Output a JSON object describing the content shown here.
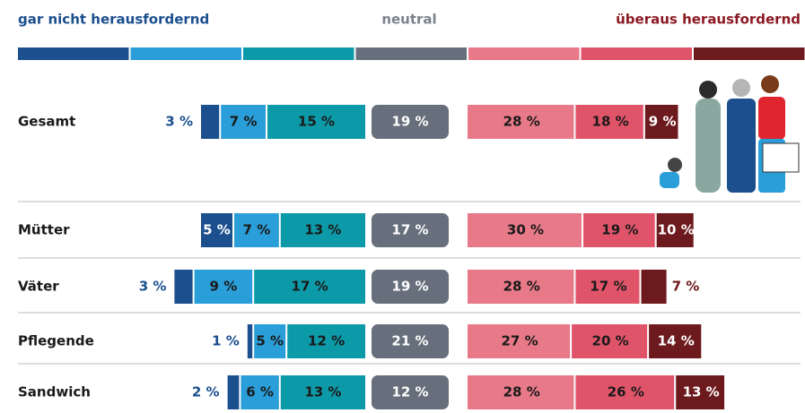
{
  "chart_data": {
    "type": "diverging_bar",
    "scale_labels": [
      "gar nicht herausfordernd",
      "neutral",
      "überaus herausfordernd"
    ],
    "categories": [
      "Gesamt",
      "Mütter",
      "Väter",
      "Pflegende",
      "Sandwich"
    ],
    "series": [
      {
        "color": "#1b4f8e",
        "values": [
          3,
          5,
          3,
          1,
          2
        ],
        "value_labels": [
          "3 %",
          "5 %",
          "3 %",
          "1 %",
          "2 %"
        ]
      },
      {
        "color": "#2a9ed8",
        "values": [
          7,
          7,
          9,
          5,
          6
        ],
        "value_labels": [
          "7 %",
          "7 %",
          "9 %",
          "5 %",
          "6 %"
        ]
      },
      {
        "color": "#0d9aa8",
        "values": [
          15,
          13,
          17,
          12,
          13
        ],
        "value_labels": [
          "15 %",
          "13 %",
          "17 %",
          "12 %",
          "13 %"
        ]
      },
      {
        "color": "#666f7b",
        "values": [
          19,
          17,
          19,
          21,
          12
        ],
        "value_labels": [
          "19 %",
          "17 %",
          "19 %",
          "21 %",
          "12 %"
        ]
      },
      {
        "color": "#e77988",
        "values": [
          28,
          30,
          28,
          27,
          28
        ],
        "value_labels": [
          "28 %",
          "30 %",
          "28 %",
          "27 %",
          "28 %"
        ]
      },
      {
        "color": "#e0546a",
        "values": [
          18,
          19,
          17,
          20,
          26
        ],
        "value_labels": [
          "18 %",
          "19 %",
          "17 %",
          "20 %",
          "26 %"
        ]
      },
      {
        "color": "#6d1a1e",
        "values": [
          9,
          10,
          7,
          14,
          13
        ],
        "value_labels": [
          "9 %",
          "10 %",
          "7 %",
          "14 %",
          "13 %"
        ]
      }
    ]
  }
}
